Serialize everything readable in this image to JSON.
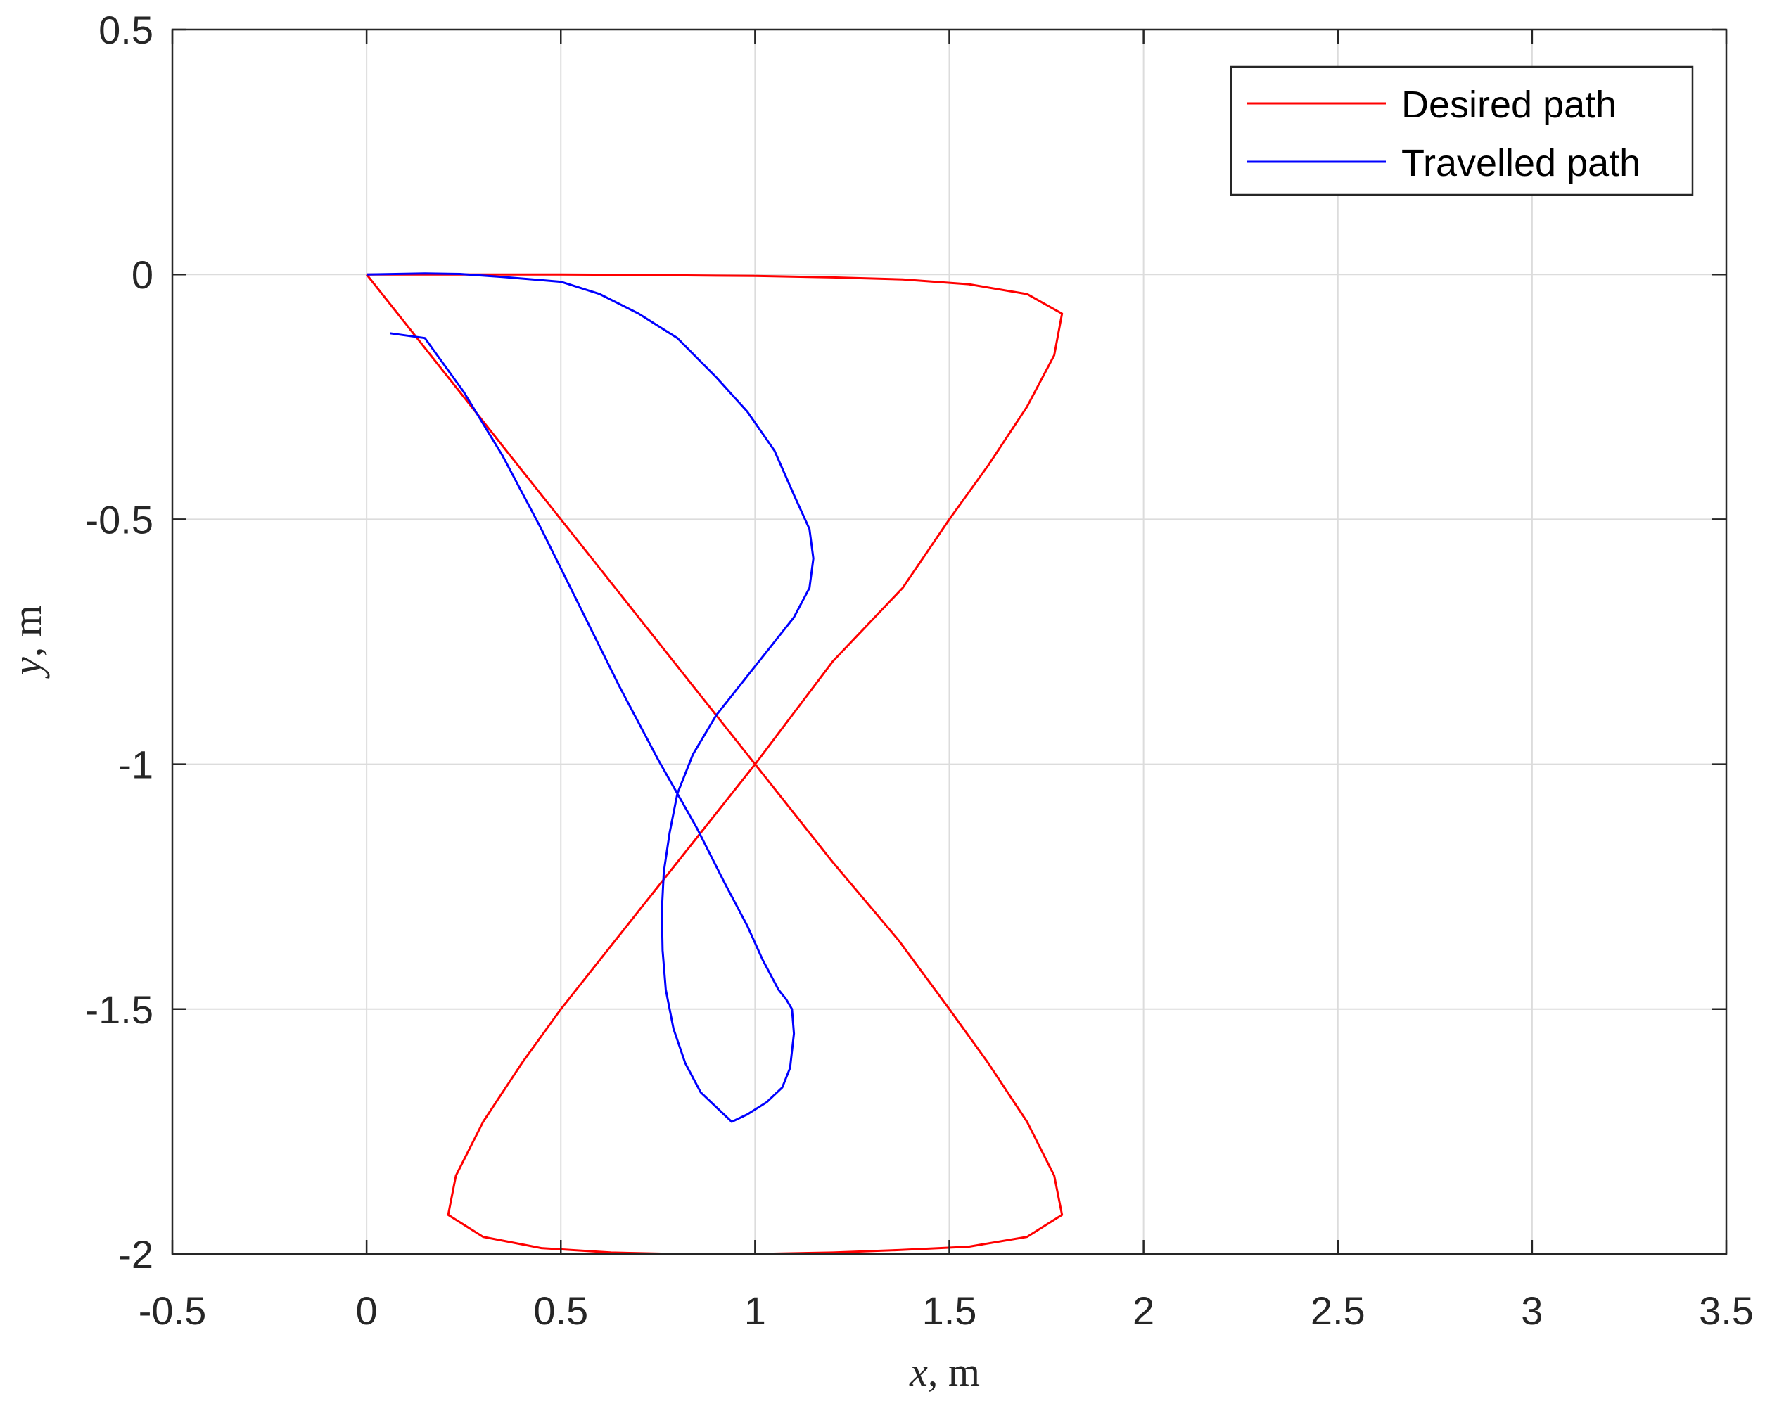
{
  "chart_data": {
    "type": "line",
    "title": "",
    "xlabel": {
      "var": "x",
      "unit": ", m"
    },
    "ylabel": {
      "var": "y",
      "unit": ", m"
    },
    "xlim": [
      -0.5,
      3.5
    ],
    "ylim": [
      -2,
      0.5
    ],
    "xticks": [
      -0.5,
      0,
      0.5,
      1,
      1.5,
      2,
      2.5,
      3,
      3.5
    ],
    "xtick_labels": [
      "-0.5",
      "0",
      "0.5",
      "1",
      "1.5",
      "2",
      "2.5",
      "3",
      "3.5"
    ],
    "yticks": [
      -2,
      -1.5,
      -1,
      -0.5,
      0,
      0.5
    ],
    "ytick_labels": [
      "-2",
      "-1.5",
      "-1",
      "-0.5",
      "0",
      "0.5"
    ],
    "grid": true,
    "legend_position": "top-right",
    "series": [
      {
        "name": "Desired path",
        "color": "#ff0000",
        "x": [
          0,
          0.15,
          0.3,
          0.5,
          0.7,
          1.0,
          1.2,
          1.38,
          1.55,
          1.7,
          1.79,
          1.77,
          1.7,
          1.6,
          1.5,
          1.38,
          1.2,
          1.0,
          0.8,
          0.62,
          0.5,
          0.4,
          0.3,
          0.23,
          0.21,
          0.3,
          0.45,
          0.63,
          0.8,
          1.0,
          1.2,
          1.37,
          1.55,
          1.7,
          1.79,
          1.77,
          1.7,
          1.6,
          1.5,
          1.37,
          1.2,
          1.0,
          0.8,
          0.6,
          0.4,
          0.2,
          0
        ],
        "y": [
          0,
          0,
          0,
          0,
          -0.001,
          -0.003,
          -0.006,
          -0.01,
          -0.02,
          -0.04,
          -0.08,
          -0.165,
          -0.27,
          -0.39,
          -0.5,
          -0.64,
          -0.79,
          -1.0,
          -1.2,
          -1.38,
          -1.5,
          -1.61,
          -1.73,
          -1.84,
          -1.92,
          -1.965,
          -1.988,
          -1.997,
          -2.0,
          -2.0,
          -1.997,
          -1.992,
          -1.985,
          -1.965,
          -1.92,
          -1.84,
          -1.73,
          -1.61,
          -1.5,
          -1.36,
          -1.2,
          -1.0,
          -0.8,
          -0.6,
          -0.4,
          -0.2,
          0
        ]
      },
      {
        "name": "Travelled path",
        "color": "#0000ff",
        "x": [
          0,
          0.15,
          0.24,
          0.35,
          0.5,
          0.6,
          0.7,
          0.8,
          0.9,
          0.98,
          1.05,
          1.1,
          1.14,
          1.15,
          1.14,
          1.1,
          1.04,
          0.97,
          0.9,
          0.84,
          0.8,
          0.78,
          0.765,
          0.76,
          0.762,
          0.77,
          0.79,
          0.82,
          0.86,
          0.9,
          0.94,
          0.98,
          1.03,
          1.07,
          1.09,
          1.1,
          1.095,
          1.08,
          1.06,
          1.02,
          0.98,
          0.92,
          0.85,
          0.75,
          0.65,
          0.55,
          0.45,
          0.35,
          0.25,
          0.15,
          0.06
        ],
        "y": [
          0,
          0.002,
          0.001,
          -0.005,
          -0.015,
          -0.04,
          -0.08,
          -0.13,
          -0.21,
          -0.28,
          -0.36,
          -0.45,
          -0.52,
          -0.58,
          -0.64,
          -0.7,
          -0.76,
          -0.83,
          -0.9,
          -0.98,
          -1.06,
          -1.14,
          -1.22,
          -1.3,
          -1.38,
          -1.46,
          -1.54,
          -1.61,
          -1.67,
          -1.7,
          -1.73,
          -1.715,
          -1.69,
          -1.66,
          -1.62,
          -1.55,
          -1.5,
          -1.48,
          -1.46,
          -1.4,
          -1.33,
          -1.24,
          -1.13,
          -0.99,
          -0.84,
          -0.68,
          -0.52,
          -0.37,
          -0.24,
          -0.13,
          -0.12
        ]
      }
    ]
  }
}
